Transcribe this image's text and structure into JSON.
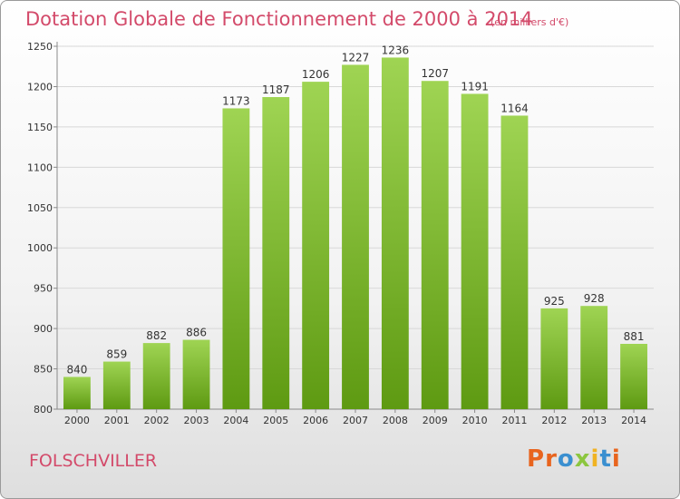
{
  "title": "Dotation Globale de Fonctionnement de 2000 à 2014",
  "unit": "(en milliers d'€)",
  "commune": "FOLSCHVILLER",
  "logo": {
    "text": "Proxiti",
    "colors": [
      "#e8641e",
      "#e8641e",
      "#3a8fd0",
      "#8cc63f",
      "#f0b323",
      "#3a8fd0",
      "#e8641e"
    ]
  },
  "colors": {
    "title": "#d34a6a",
    "bar_top": "#9fd453",
    "bar_bottom": "#5e9a12",
    "grid": "#d8d8d8",
    "axis": "#8a8a8a"
  },
  "chart_data": {
    "type": "bar",
    "title": "Dotation Globale de Fonctionnement de 2000 à 2014",
    "subtitle": "(en milliers d'€)",
    "xlabel": "",
    "ylabel": "",
    "categories": [
      "2000",
      "2001",
      "2002",
      "2003",
      "2004",
      "2005",
      "2006",
      "2007",
      "2008",
      "2009",
      "2010",
      "2011",
      "2012",
      "2013",
      "2014"
    ],
    "values": [
      840,
      859,
      882,
      886,
      1173,
      1187,
      1206,
      1227,
      1236,
      1207,
      1191,
      1164,
      925,
      928,
      881
    ],
    "ylim": [
      800,
      1250
    ],
    "yticks": [
      800,
      850,
      900,
      950,
      1000,
      1050,
      1100,
      1150,
      1200,
      1250
    ],
    "grid": true
  }
}
